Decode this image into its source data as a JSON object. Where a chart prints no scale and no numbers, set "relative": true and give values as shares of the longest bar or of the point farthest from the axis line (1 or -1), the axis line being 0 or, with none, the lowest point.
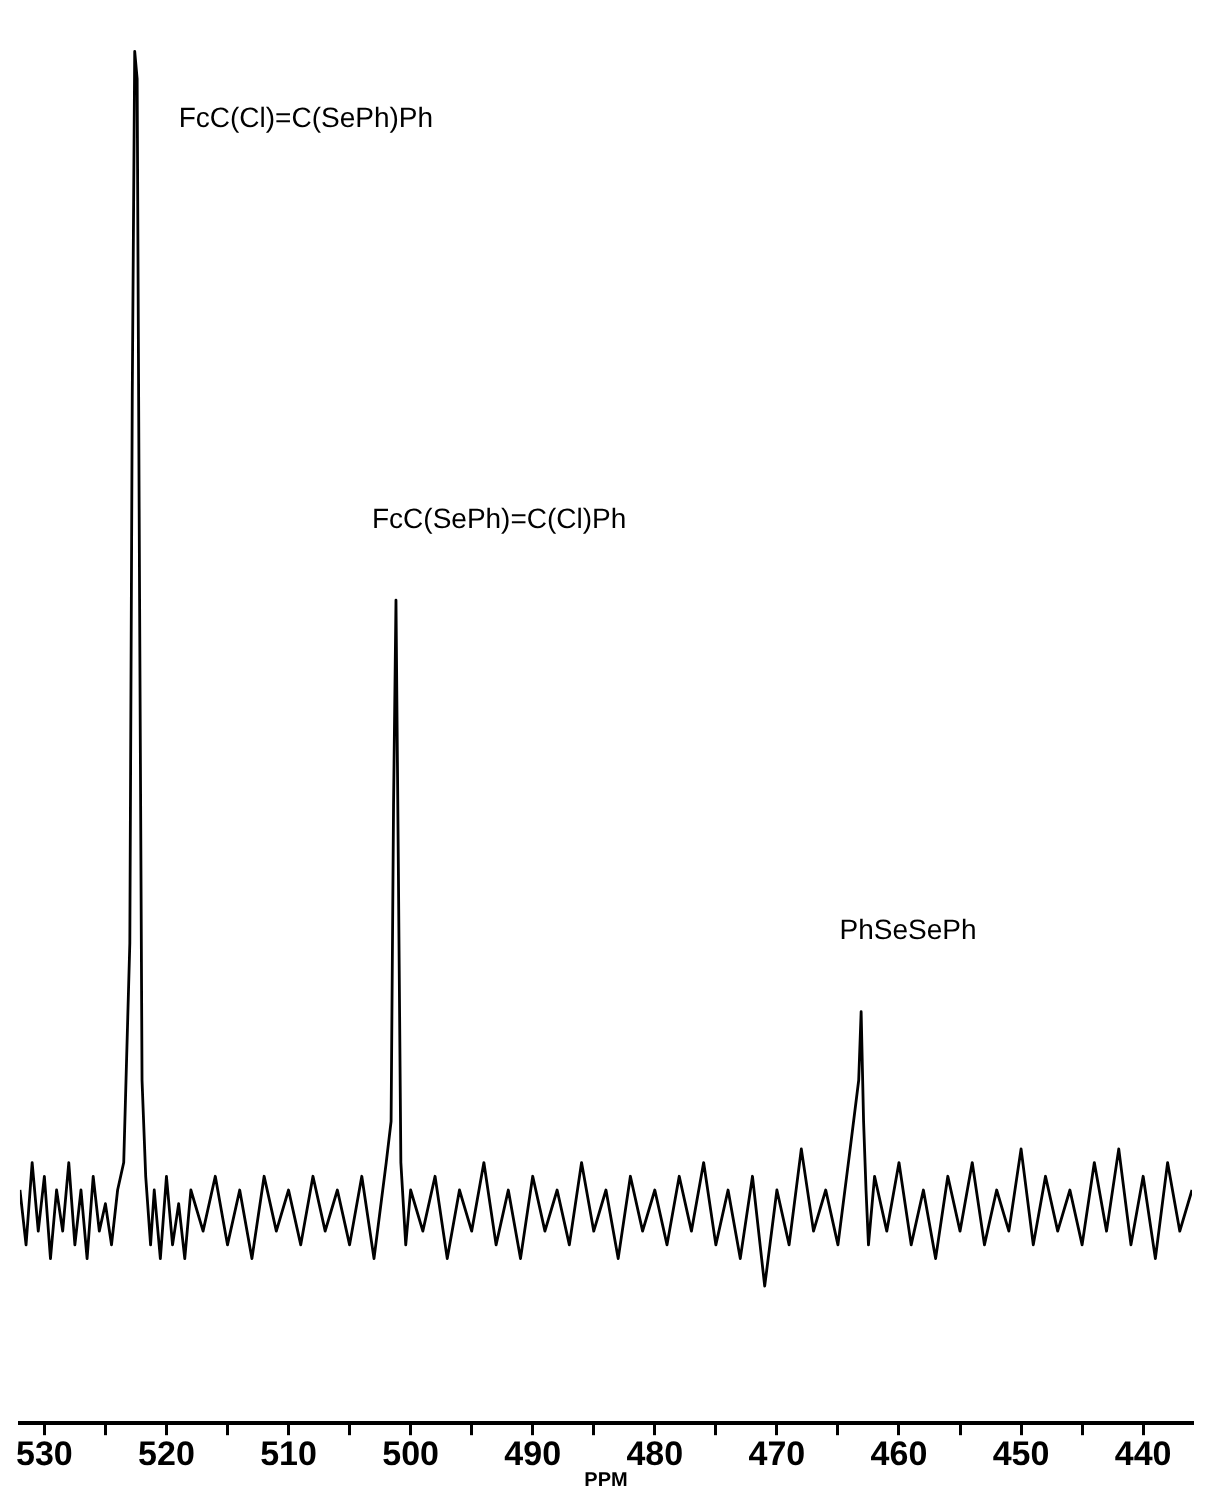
{
  "chart_data": {
    "type": "line",
    "relative": true,
    "xlabel": "PPM",
    "marker": "none",
    "line_style": "solid",
    "xlim": [
      532,
      436
    ],
    "xticks": [
      530,
      {
        "value": 525,
        "label": null
      },
      520,
      {
        "value": 515,
        "label": null
      },
      510,
      {
        "value": 505,
        "label": null
      },
      500,
      {
        "value": 495,
        "label": null
      },
      490,
      {
        "value": 485,
        "label": null
      },
      480,
      {
        "value": 475,
        "label": null
      },
      470,
      {
        "value": 465,
        "label": null
      },
      460,
      {
        "value": 455,
        "label": null
      },
      450,
      {
        "value": 445,
        "label": null
      },
      440
    ],
    "annotations": [
      {
        "text": "FcC(Cl)=C(SePh)Ph",
        "x": 522.6,
        "y": 1.0
      },
      {
        "text": "FcC(SePh)=C(Cl)Ph",
        "x": 501.2,
        "y": 0.6
      },
      {
        "text": "PhSeSePh",
        "x": 462.9,
        "y": 0.3
      }
    ],
    "series": [
      {
        "color": "#000000",
        "x": [
          532,
          531.5,
          531,
          530.5,
          530,
          529.5,
          529,
          528.5,
          528,
          527.5,
          527,
          526.5,
          526,
          525.5,
          525,
          524.5,
          524,
          523.5,
          523,
          522.8,
          522.6,
          522.4,
          522.2,
          522,
          521.7,
          521.3,
          521,
          520.5,
          520,
          519.5,
          519,
          518.5,
          518,
          517,
          516,
          515,
          514,
          513,
          512,
          511,
          510,
          509,
          508,
          507,
          506,
          505,
          504,
          503,
          502,
          501.6,
          501.4,
          501.2,
          501,
          500.8,
          500.4,
          500,
          499,
          498,
          497,
          496,
          495,
          494,
          493,
          492,
          491,
          490,
          489,
          488,
          487,
          486,
          485,
          484,
          483,
          482,
          481,
          480,
          479,
          478,
          477,
          476,
          475,
          474,
          473,
          472,
          471,
          470,
          469,
          468,
          467,
          466,
          465,
          464,
          463.3,
          463.1,
          462.9,
          462.7,
          462.5,
          462,
          461,
          460,
          459,
          458,
          457,
          456,
          455,
          454,
          453,
          452,
          451,
          450,
          449,
          448,
          447,
          446,
          445,
          444,
          443,
          442,
          441,
          440,
          439,
          438,
          437,
          436
        ],
        "values": [
          0.17,
          0.13,
          0.19,
          0.14,
          0.18,
          0.12,
          0.17,
          0.14,
          0.19,
          0.13,
          0.17,
          0.12,
          0.18,
          0.14,
          0.16,
          0.13,
          0.17,
          0.19,
          0.35,
          0.75,
          1.0,
          0.98,
          0.6,
          0.25,
          0.18,
          0.13,
          0.17,
          0.12,
          0.18,
          0.13,
          0.16,
          0.12,
          0.17,
          0.14,
          0.18,
          0.13,
          0.17,
          0.12,
          0.18,
          0.14,
          0.17,
          0.13,
          0.18,
          0.14,
          0.17,
          0.13,
          0.18,
          0.12,
          0.19,
          0.22,
          0.45,
          0.6,
          0.4,
          0.19,
          0.13,
          0.17,
          0.14,
          0.18,
          0.12,
          0.17,
          0.14,
          0.19,
          0.13,
          0.17,
          0.12,
          0.18,
          0.14,
          0.17,
          0.13,
          0.19,
          0.14,
          0.17,
          0.12,
          0.18,
          0.14,
          0.17,
          0.13,
          0.18,
          0.14,
          0.19,
          0.13,
          0.17,
          0.12,
          0.18,
          0.1,
          0.17,
          0.13,
          0.2,
          0.14,
          0.17,
          0.13,
          0.2,
          0.25,
          0.3,
          0.22,
          0.17,
          0.13,
          0.18,
          0.14,
          0.19,
          0.13,
          0.17,
          0.12,
          0.18,
          0.14,
          0.19,
          0.13,
          0.17,
          0.14,
          0.2,
          0.13,
          0.18,
          0.14,
          0.17,
          0.13,
          0.19,
          0.14,
          0.2,
          0.13,
          0.18,
          0.12,
          0.19,
          0.14,
          0.17
        ]
      }
    ]
  }
}
